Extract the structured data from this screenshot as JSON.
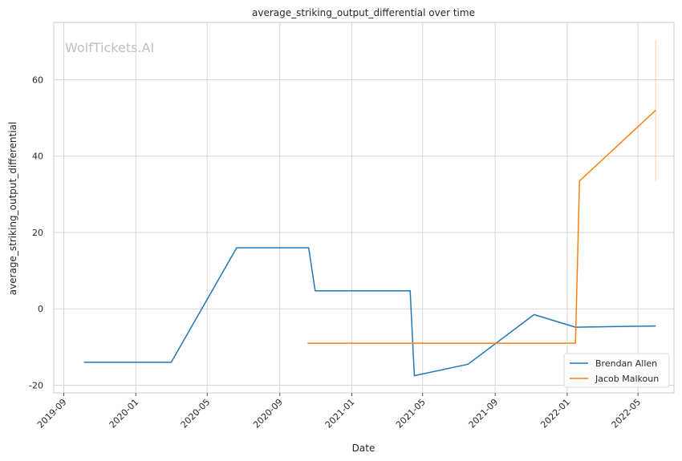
{
  "chart_data": {
    "type": "line",
    "title": "average_striking_output_differential over time",
    "xlabel": "Date",
    "ylabel": "average_striking_output_differential",
    "watermark": "WolfTickets.AI",
    "grid": true,
    "legend_position": "lower-right",
    "xlim": [
      "2019-08-15",
      "2022-07-01"
    ],
    "ylim": [
      -22,
      75
    ],
    "x_ticks": [
      "2019-09",
      "2020-01",
      "2020-05",
      "2020-09",
      "2021-01",
      "2021-05",
      "2021-09",
      "2022-01",
      "2022-05"
    ],
    "y_ticks": [
      -20,
      0,
      20,
      40,
      60
    ],
    "series": [
      {
        "name": "Brendan Allen",
        "color": "#1f77b4",
        "points": [
          {
            "x": "2019-10-05",
            "y": -14
          },
          {
            "x": "2020-03-01",
            "y": -14
          },
          {
            "x": "2020-06-20",
            "y": 16
          },
          {
            "x": "2020-10-20",
            "y": 16
          },
          {
            "x": "2020-10-31",
            "y": 4.7
          },
          {
            "x": "2021-04-10",
            "y": 4.7
          },
          {
            "x": "2021-04-17",
            "y": -17.5
          },
          {
            "x": "2021-07-17",
            "y": -14.5
          },
          {
            "x": "2021-11-06",
            "y": -1.5
          },
          {
            "x": "2022-01-15",
            "y": -4.8
          },
          {
            "x": "2022-05-31",
            "y": -4.5
          }
        ]
      },
      {
        "name": "Jacob Malkoun",
        "color": "#ff7f0e",
        "points": [
          {
            "x": "2020-10-18",
            "y": -9
          },
          {
            "x": "2022-01-15",
            "y": -9
          },
          {
            "x": "2022-01-22",
            "y": 33.5
          },
          {
            "x": "2022-05-31",
            "y": 52
          }
        ],
        "error_band": {
          "x": "2022-05-31",
          "low": 33.5,
          "high": 70.5
        }
      }
    ]
  }
}
